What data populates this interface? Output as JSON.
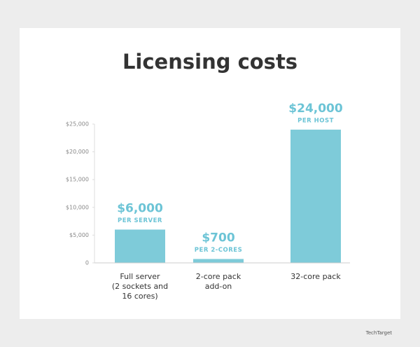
{
  "chart_data": {
    "type": "bar",
    "title": "Licensing costs",
    "categories": [
      [
        "Full server",
        "(2 sockets and",
        "16 cores)"
      ],
      [
        "2-core pack",
        "add-on"
      ],
      [
        "32-core pack"
      ]
    ],
    "values": [
      6000,
      700,
      24000
    ],
    "value_labels": [
      "$6,000",
      "$700",
      "$24,000"
    ],
    "value_sublabels": [
      "PER SERVER",
      "PER 2-CORES",
      "PER HOST"
    ],
    "color": "#7ecbd9",
    "ylim": [
      0,
      25000
    ],
    "yticks": [
      0,
      {
        "value": 5000,
        "label": "$5,000"
      },
      {
        "value": 10000,
        "label": "$10,000"
      },
      {
        "value": 15000,
        "label": "$15,000"
      },
      {
        "value": 20000,
        "label": "$20,000"
      },
      {
        "value": 25000,
        "label": "$25,000"
      }
    ],
    "footer_logo": "TechTarget"
  }
}
